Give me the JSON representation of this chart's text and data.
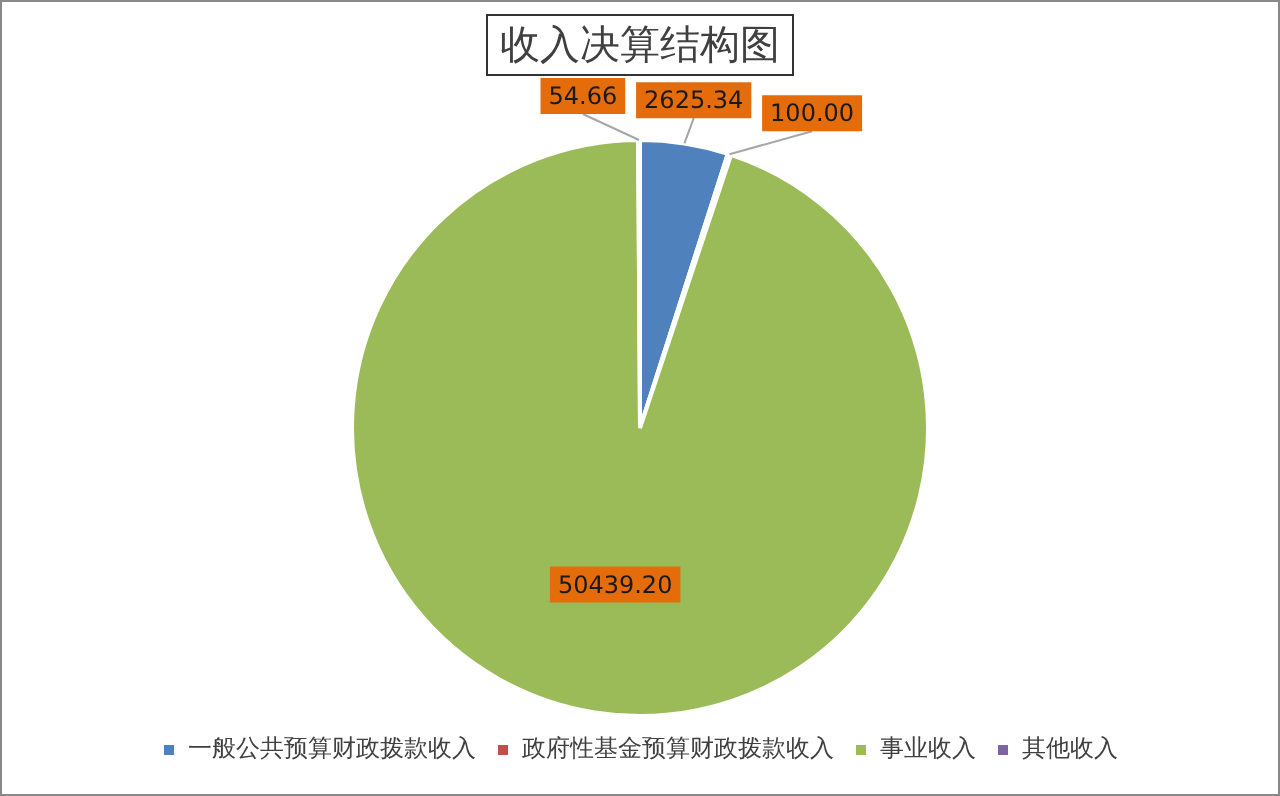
{
  "chart_data": {
    "type": "pie",
    "title": "收入决算结构图",
    "categories": [
      "一般公共预算财政拨款收入",
      "政府性基金预算财政拨款收入",
      "事业收入",
      "其他收入"
    ],
    "values": [
      2625.34,
      100.0,
      50439.2,
      54.66
    ],
    "colors": [
      "#4f81bd",
      "#c0504d",
      "#9bbb59",
      "#8064a2"
    ],
    "value_labels": [
      "2625.34",
      "100.00",
      "50439.20",
      "54.66"
    ],
    "legend": "bottom"
  }
}
